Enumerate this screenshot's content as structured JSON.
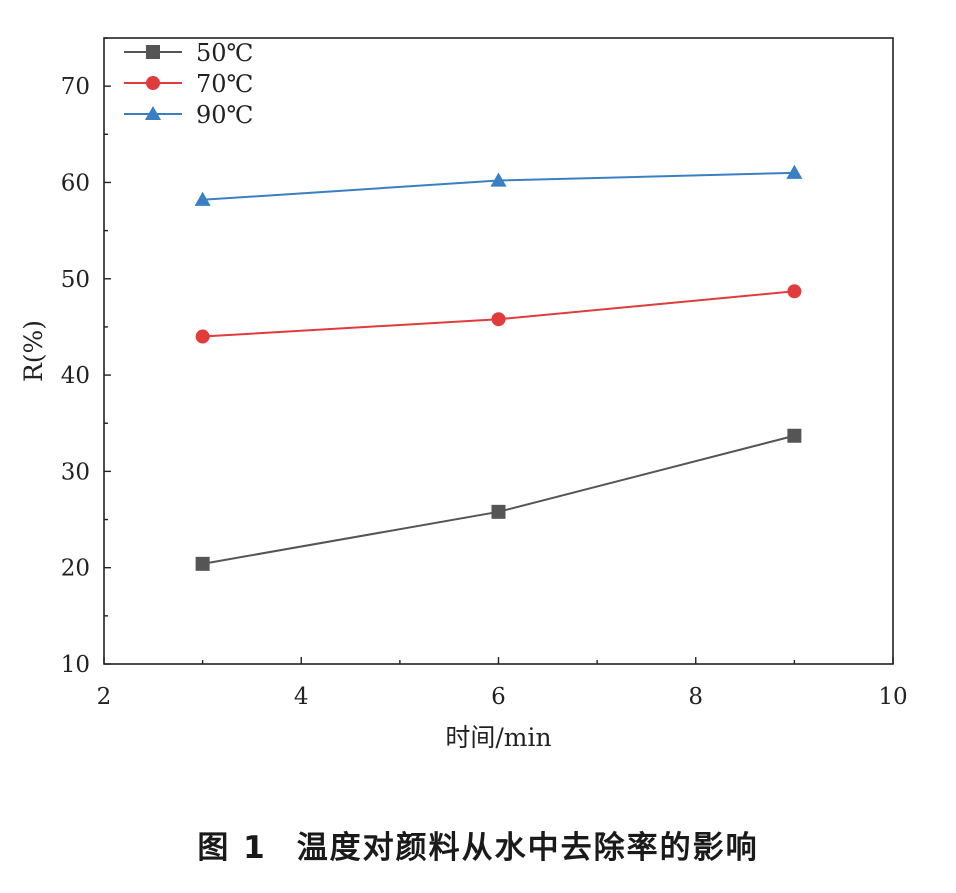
{
  "chart_data": {
    "type": "line",
    "xlabel": "时间/min",
    "ylabel": "R(%)",
    "xlim": [
      2,
      10
    ],
    "ylim": [
      10,
      75
    ],
    "xticks": [
      2,
      4,
      6,
      8,
      10
    ],
    "yticks": [
      10,
      20,
      30,
      40,
      50,
      60,
      70
    ],
    "grid": false,
    "legend_position": "top-left",
    "series": [
      {
        "name": "50℃",
        "color": "#555555",
        "marker": "square",
        "x": [
          3,
          6,
          9
        ],
        "values": [
          20.4,
          25.8,
          33.7
        ]
      },
      {
        "name": "70℃",
        "color": "#e03c3c",
        "marker": "circle",
        "x": [
          3,
          6,
          9
        ],
        "values": [
          44.0,
          45.8,
          48.7
        ]
      },
      {
        "name": "90℃",
        "color": "#3a7fc4",
        "marker": "triangle",
        "x": [
          3,
          6,
          9
        ],
        "values": [
          58.2,
          60.2,
          61.0
        ]
      }
    ]
  },
  "caption": {
    "number": "图 1",
    "text": "温度对颜料从水中去除率的影响"
  }
}
